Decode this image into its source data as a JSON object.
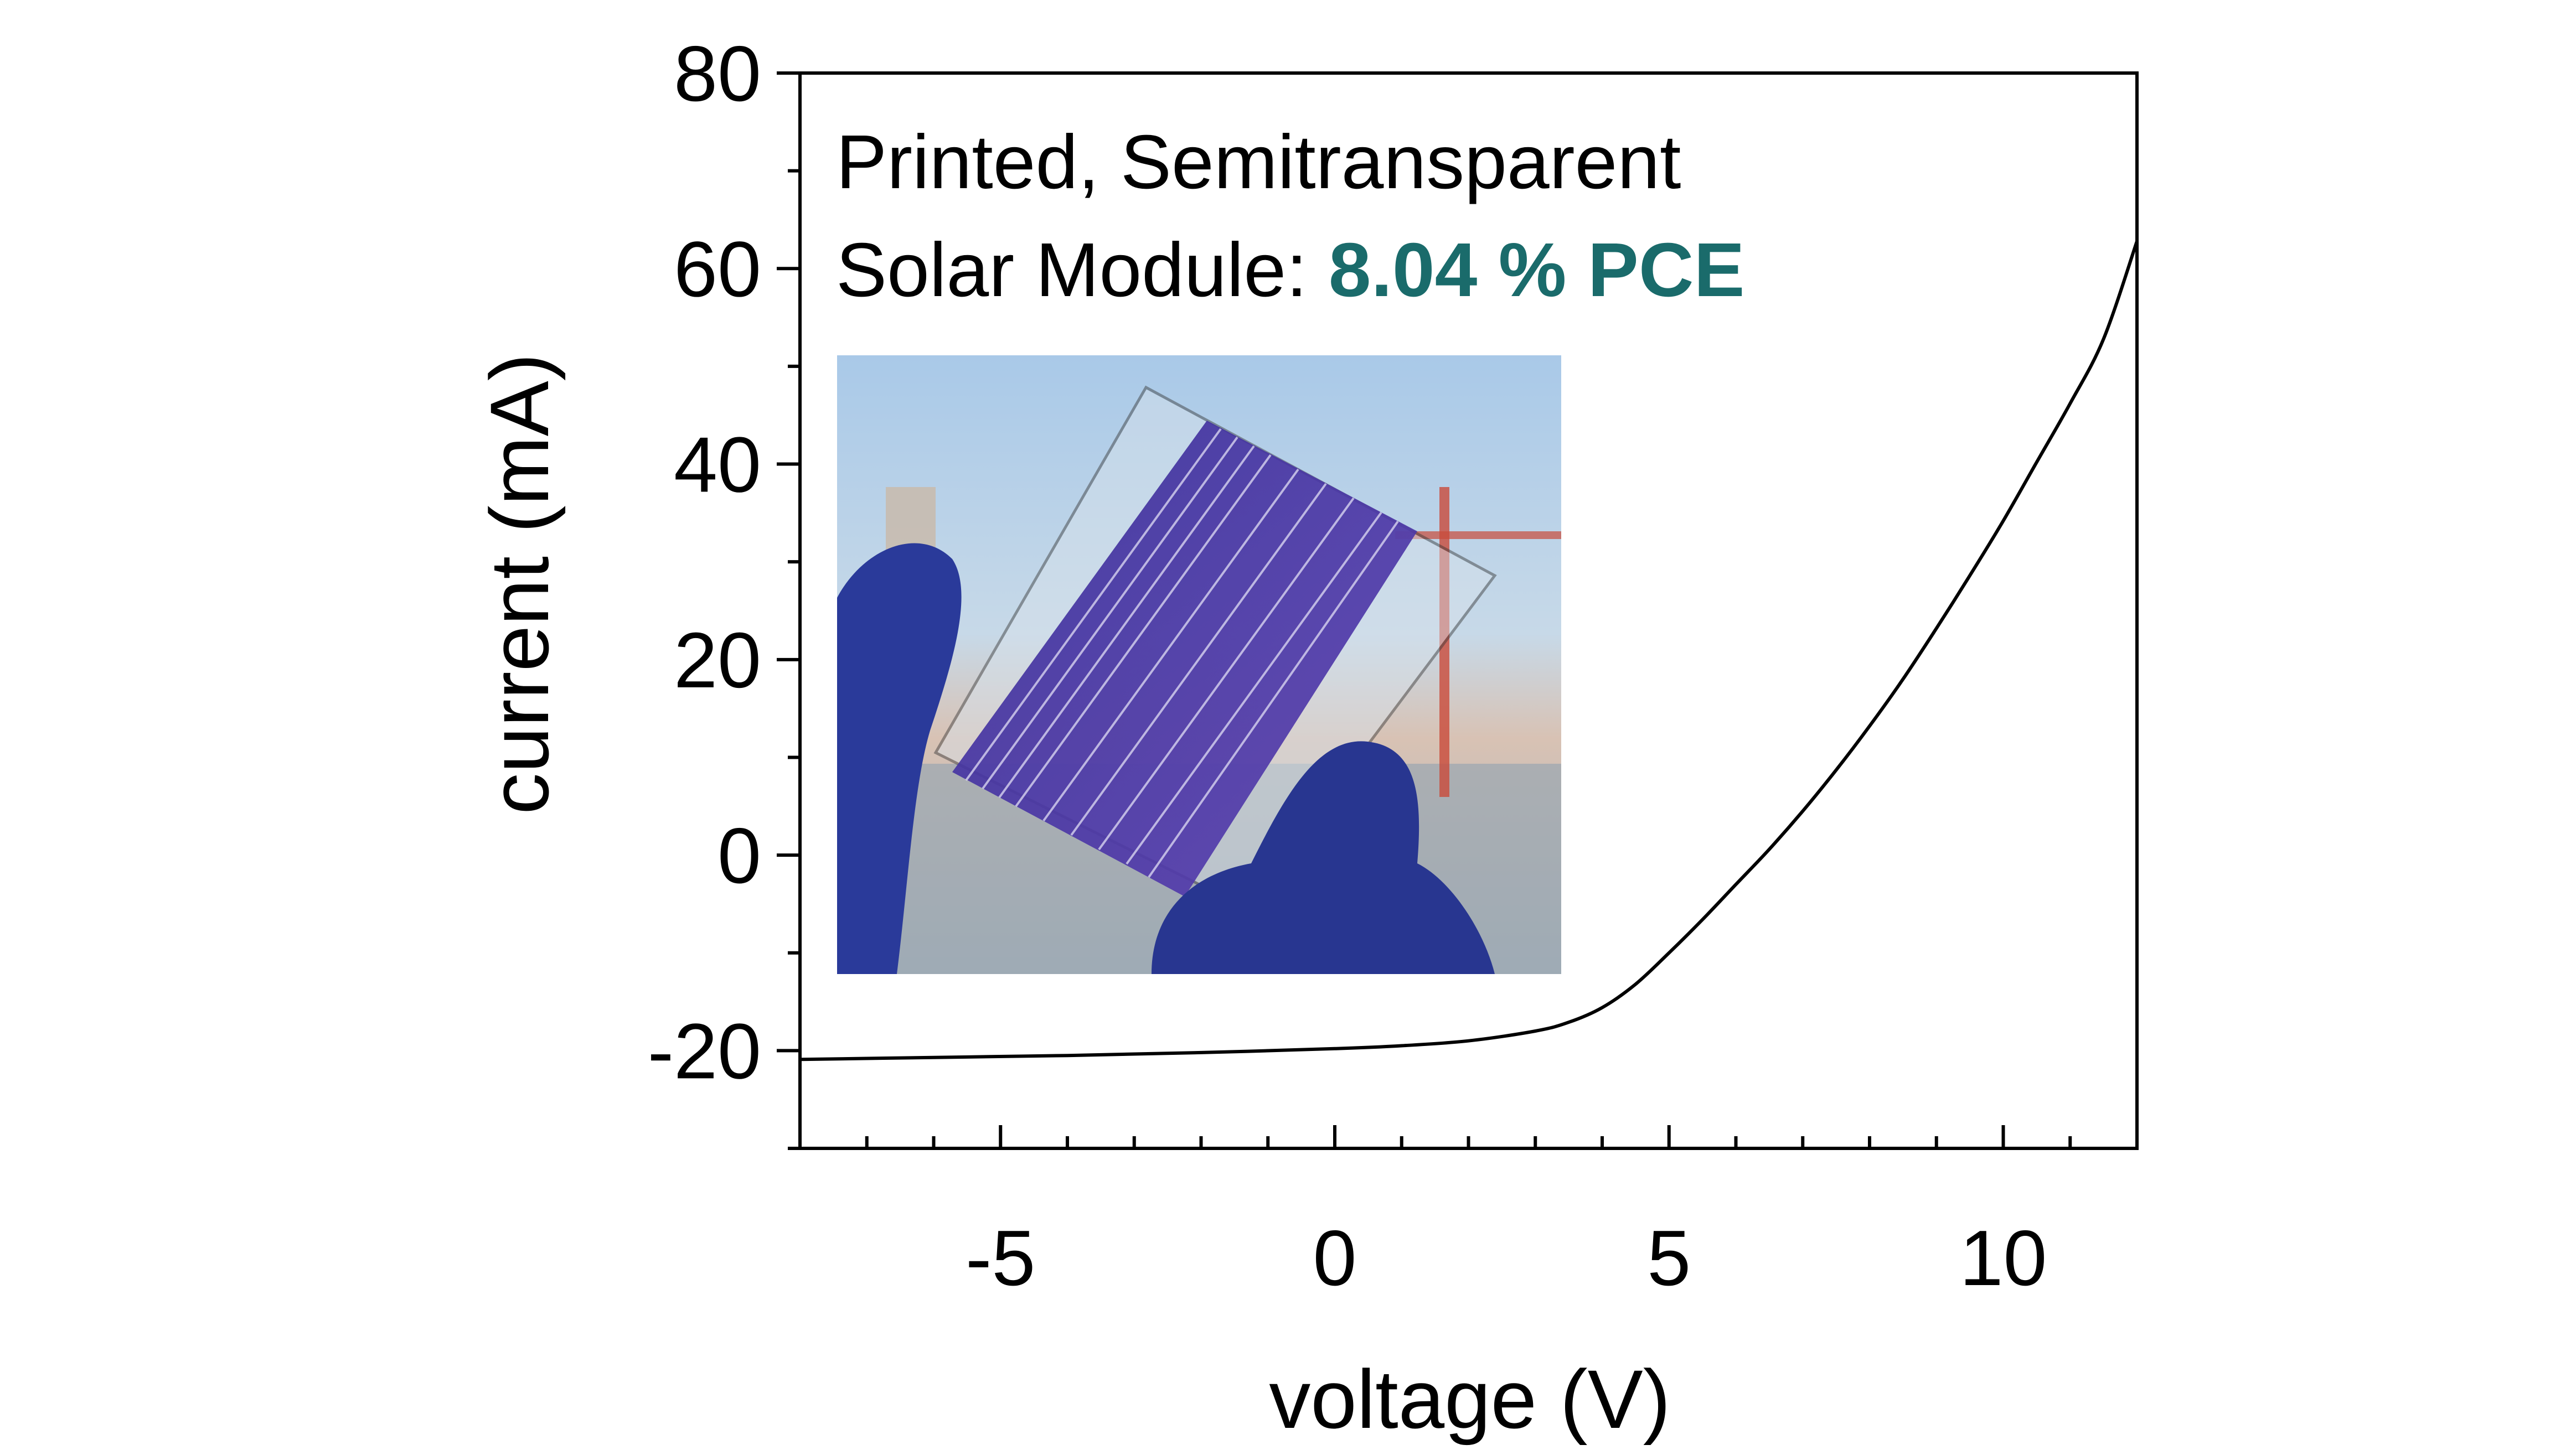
{
  "chart_data": {
    "type": "line",
    "xlabel": "voltage (V)",
    "ylabel": "current (mA)",
    "xlim": [
      -8,
      12
    ],
    "ylim": [
      -30,
      80
    ],
    "x_ticks": [
      -5,
      0,
      5,
      10
    ],
    "x_tick_labels": [
      "-5",
      "0",
      "5",
      "10"
    ],
    "y_ticks": [
      -20,
      0,
      20,
      40,
      60,
      80
    ],
    "y_tick_labels": [
      "-20",
      "0",
      "20",
      "40",
      "60",
      "80"
    ],
    "grid": false,
    "series": [
      {
        "color": "#000000",
        "x": [
          -8,
          -6,
          -4,
          -2,
          0,
          1,
          2,
          3,
          3.5,
          4,
          4.5,
          5,
          5.5,
          6,
          6.5,
          7,
          7.5,
          8,
          8.5,
          9,
          9.5,
          10,
          10.5,
          11,
          11.5,
          12
        ],
        "y": [
          -20.9,
          -20.7,
          -20.5,
          -20.2,
          -19.8,
          -19.5,
          -19.0,
          -18.0,
          -17.1,
          -15.6,
          -13.2,
          -10.0,
          -6.6,
          -3.0,
          0.6,
          4.5,
          8.7,
          13.2,
          18.0,
          23.2,
          28.6,
          34.2,
          40.2,
          46.2,
          52.8,
          62.8
        ]
      }
    ],
    "annotations": {
      "line1": "Printed, Semitransparent",
      "line2_prefix": "Solar Module: ",
      "line2_highlight": "8.04 % PCE",
      "highlight_color": "#1a6b6b"
    },
    "inset_photo": true
  }
}
